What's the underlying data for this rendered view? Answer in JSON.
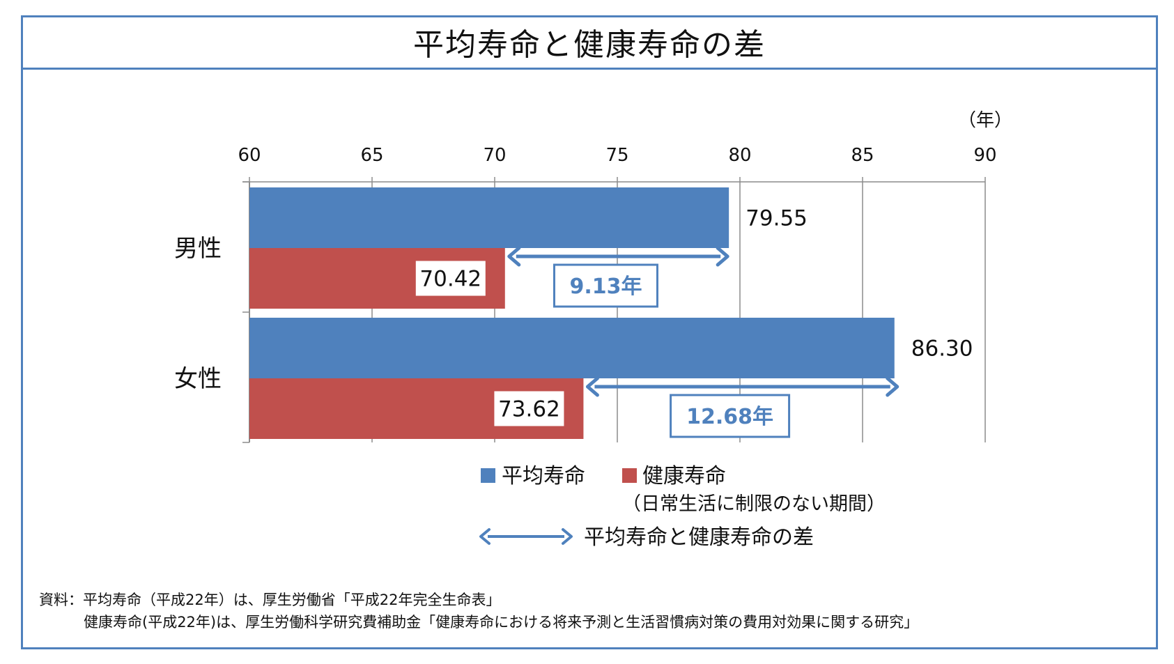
{
  "title": "平均寿命と健康寿命の差",
  "chart_data": {
    "type": "bar",
    "orientation": "horizontal",
    "unit_label": "（年）",
    "xlim": [
      60,
      90
    ],
    "x_ticks": [
      60,
      65,
      70,
      75,
      80,
      85,
      90
    ],
    "grid": true,
    "categories": [
      "男性",
      "女性"
    ],
    "series": [
      {
        "name": "平均寿命",
        "color": "#4f81bd",
        "values": [
          79.55,
          86.3
        ],
        "labels": [
          "79.55",
          "86.30"
        ]
      },
      {
        "name": "健康寿命",
        "color": "#c0504d",
        "values": [
          70.42,
          73.62
        ],
        "labels": [
          "70.42",
          "73.62"
        ]
      }
    ],
    "annotations": [
      {
        "category": "男性",
        "from": 70.42,
        "to": 79.55,
        "label": "9.13年"
      },
      {
        "category": "女性",
        "from": 73.62,
        "to": 86.3,
        "label": "12.68年"
      }
    ],
    "legend": {
      "items": [
        {
          "label": "平均寿命",
          "color": "#4f81bd"
        },
        {
          "label": "健康寿命",
          "color": "#c0504d"
        }
      ],
      "note": "（日常生活に制限のない期間）",
      "arrow_label": "平均寿命と健康寿命の差",
      "placement": "bottom"
    }
  },
  "source": {
    "line1": "資料：平均寿命（平成22年）は、厚生労働省「平成22年完全生命表」",
    "line2": "健康寿命(平成22年)は、厚生労働科学研究費補助金「健康寿命における将来予測と生活習慣病対策の費用対効果に関する研究」"
  },
  "colors": {
    "accent": "#4f81bd",
    "healthy": "#c0504d",
    "frame": "#4f81bd"
  }
}
